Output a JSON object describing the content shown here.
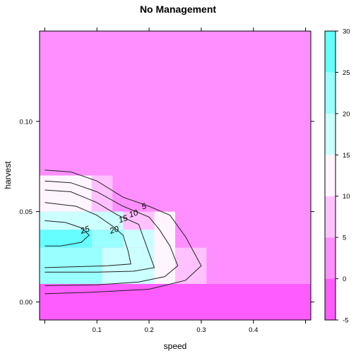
{
  "chart_data": {
    "type": "heatmap",
    "title": "No Management",
    "xlabel": "speed",
    "ylabel": "harvest",
    "xlim": [
      -0.01,
      0.51
    ],
    "ylim": [
      -0.01,
      0.15
    ],
    "x_ticks": [
      "0.1",
      "0.2",
      "0.3",
      "0.4"
    ],
    "y_ticks": [
      "0.00",
      "0.05",
      "0.10"
    ],
    "colorkey": {
      "breaks": [
        -5,
        0,
        5,
        10,
        15,
        20,
        25,
        30
      ],
      "tick_labels": [
        "-5",
        "0",
        "5",
        "10",
        "15",
        "20",
        "25",
        "30"
      ],
      "colors": [
        "#ff5cff",
        "#ff8fff",
        "#ffc2ff",
        "#fff5ff",
        "#ccffff",
        "#99ffff",
        "#66ffff"
      ]
    },
    "cells": [
      {
        "x": [
          -0.01,
          0.51
        ],
        "y": [
          -0.01,
          0.01
        ],
        "bin": 0
      },
      {
        "x": [
          -0.01,
          0.51
        ],
        "y": [
          0.01,
          0.15
        ],
        "bin": 1
      },
      {
        "x": [
          -0.01,
          0.09
        ],
        "y": [
          0.05,
          0.07
        ],
        "bin": 3
      },
      {
        "x": [
          0.09,
          0.13
        ],
        "y": [
          0.05,
          0.07
        ],
        "bin": 2
      },
      {
        "x": [
          0.13,
          0.21
        ],
        "y": [
          0.04,
          0.05
        ],
        "bin": 2
      },
      {
        "x": [
          -0.01,
          0.15
        ],
        "y": [
          0.04,
          0.05
        ],
        "bin": 4
      },
      {
        "x": [
          -0.01,
          0.09
        ],
        "y": [
          0.03,
          0.04
        ],
        "bin": 6
      },
      {
        "x": [
          0.09,
          0.15
        ],
        "y": [
          0.03,
          0.04
        ],
        "bin": 5
      },
      {
        "x": [
          -0.01,
          0.11
        ],
        "y": [
          0.01,
          0.03
        ],
        "bin": 5
      },
      {
        "x": [
          0.11,
          0.21
        ],
        "y": [
          0.01,
          0.03
        ],
        "bin": 4
      },
      {
        "x": [
          0.15,
          0.21
        ],
        "y": [
          0.03,
          0.04
        ],
        "bin": 4
      },
      {
        "x": [
          0.21,
          0.25
        ],
        "y": [
          0.01,
          0.05
        ],
        "bin": 3
      },
      {
        "x": [
          0.25,
          0.31
        ],
        "y": [
          0.01,
          0.03
        ],
        "bin": 2
      }
    ],
    "contours": [
      {
        "level": "5",
        "label_at": [
          0.19,
          0.053
        ],
        "points": [
          [
            0.0,
            0.073
          ],
          [
            0.05,
            0.072
          ],
          [
            0.1,
            0.067
          ],
          [
            0.15,
            0.058
          ],
          [
            0.2,
            0.053
          ],
          [
            0.24,
            0.048
          ],
          [
            0.27,
            0.036
          ],
          [
            0.3,
            0.02
          ],
          [
            0.27,
            0.012
          ],
          [
            0.2,
            0.007
          ],
          [
            0.1,
            0.0055
          ],
          [
            0.0,
            0.0045
          ]
        ]
      },
      {
        "level": "10",
        "label_at": [
          0.17,
          0.049
        ],
        "points": [
          [
            0.0,
            0.067
          ],
          [
            0.05,
            0.066
          ],
          [
            0.1,
            0.061
          ],
          [
            0.15,
            0.053
          ],
          [
            0.2,
            0.047
          ],
          [
            0.22,
            0.04
          ],
          [
            0.24,
            0.031
          ],
          [
            0.255,
            0.02
          ],
          [
            0.23,
            0.014
          ],
          [
            0.18,
            0.011
          ],
          [
            0.1,
            0.0095
          ],
          [
            0.0,
            0.009
          ]
        ]
      },
      {
        "level": "15",
        "label_at": [
          0.15,
          0.046
        ],
        "points": [
          [
            0.0,
            0.062
          ],
          [
            0.05,
            0.061
          ],
          [
            0.1,
            0.055
          ],
          [
            0.14,
            0.048
          ],
          [
            0.18,
            0.043
          ],
          [
            0.19,
            0.035
          ],
          [
            0.2,
            0.027
          ],
          [
            0.21,
            0.019
          ],
          [
            0.17,
            0.017
          ],
          [
            0.1,
            0.0165
          ],
          [
            0.0,
            0.0165
          ]
        ]
      },
      {
        "level": "20",
        "label_at": [
          0.133,
          0.04
        ],
        "points": [
          [
            0.0,
            0.055
          ],
          [
            0.06,
            0.053
          ],
          [
            0.1,
            0.048
          ],
          [
            0.13,
            0.042
          ],
          [
            0.15,
            0.037
          ],
          [
            0.16,
            0.028
          ],
          [
            0.165,
            0.021
          ],
          [
            0.12,
            0.02
          ],
          [
            0.0,
            0.019
          ]
        ]
      },
      {
        "level": "25",
        "label_at": [
          0.077,
          0.04
        ],
        "points": [
          [
            0.0,
            0.045
          ],
          [
            0.04,
            0.044
          ],
          [
            0.07,
            0.041
          ],
          [
            0.085,
            0.037
          ],
          [
            0.07,
            0.033
          ],
          [
            0.03,
            0.031
          ],
          [
            0.0,
            0.031
          ]
        ]
      }
    ]
  }
}
